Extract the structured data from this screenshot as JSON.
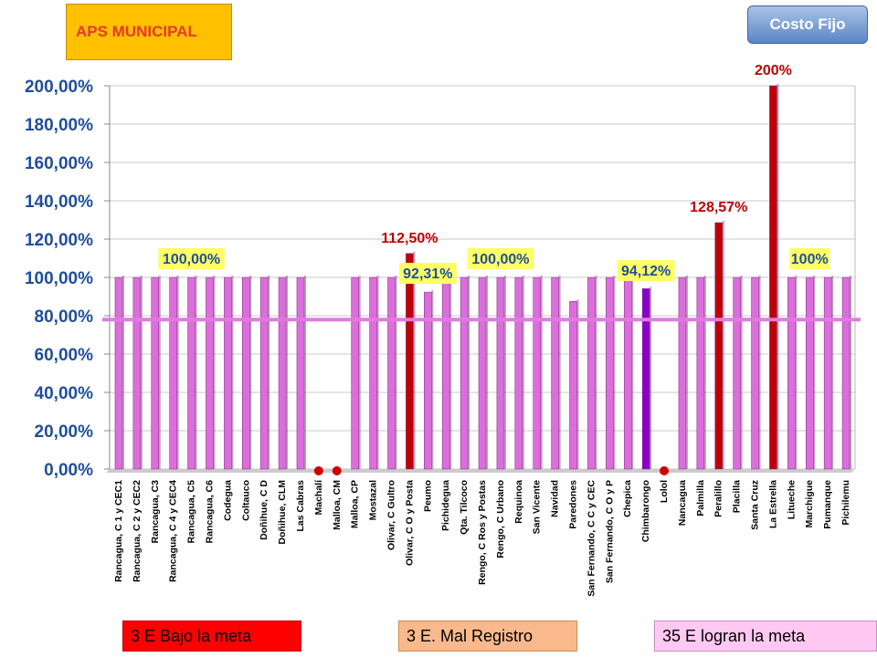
{
  "header": {
    "title": "APS MUNICIPAL",
    "button_label": "Costo Fijo"
  },
  "legend": {
    "below": "3 E Bajo la meta",
    "bad_record": "3 E. Mal Registro",
    "achieved": "35 E logran la meta"
  },
  "colors": {
    "bar_default": "#dc6edc",
    "bar_above": "#c00000",
    "bar_chimbarongo": "#8a00c8",
    "zero_marker": "#d00000",
    "target_line": "#e07ae0",
    "label_yellow": "#ffff66",
    "label_red_text": "#c00000",
    "label_blue_text": "#1f4e9c"
  },
  "chart_data": {
    "type": "bar",
    "ylim": [
      0,
      200
    ],
    "y_ticks": [
      "0,00%",
      "20,00%",
      "40,00%",
      "60,00%",
      "80,00%",
      "100,00%",
      "120,00%",
      "140,00%",
      "160,00%",
      "180,00%",
      "200,00%"
    ],
    "target": 78,
    "categories": [
      "Rancagua, C 1 y CEC1",
      "Rancagua, C 2 y CEC2",
      "Rancagua, C3",
      "Rancagua, C 4 y CEC4",
      "Rancagua, C5",
      "Rancagua, C6",
      "Codegua",
      "Coltauco",
      "Doñihue, C D",
      "Doñihue, CLM",
      "Las Cabras",
      "Machalí",
      "Malloa, CM",
      "Malloa, CP",
      "Mostazal",
      "Olivar, C Gultro",
      "Olivar, C O y Posta",
      "Peumo",
      "Pichidegua",
      "Qta. Tilcoco",
      "Rengo, C Ros y Postas",
      "Rengo, C Urbano",
      "Requinoa",
      "San Vicente",
      "Navidad",
      "Paredones",
      "San Fernando, C C y CEC",
      "San Fernando, C O y P",
      "Chepica",
      "Chimbarongo",
      "Lolol",
      "Nancagua",
      "Palmilla",
      "Peralillo",
      "Placilla",
      "Santa Cruz",
      "La Estrella",
      "Litueche",
      "Marchigue",
      "Pumanque",
      "Pichilemu"
    ],
    "values": [
      100,
      100,
      100,
      100,
      100,
      100,
      100,
      100,
      100,
      100,
      100,
      0,
      0,
      100,
      100,
      100,
      112.5,
      92.31,
      100,
      100,
      100,
      100,
      100,
      100,
      100,
      87.5,
      100,
      100,
      100,
      94.12,
      0,
      100,
      100,
      128.57,
      100,
      100,
      200,
      100,
      100,
      100,
      100
    ],
    "data_labels": [
      {
        "index": 4,
        "text": "100,00%",
        "style": "yellow"
      },
      {
        "index": 16,
        "text": "112,50%",
        "style": "red"
      },
      {
        "index": 17,
        "text": "92,31%",
        "style": "yellow"
      },
      {
        "index": 21,
        "text": "100,00%",
        "style": "yellow"
      },
      {
        "index": 29,
        "text": "94,12%",
        "style": "yellow"
      },
      {
        "index": 33,
        "text": "128,57%",
        "style": "red"
      },
      {
        "index": 36,
        "text": "200%",
        "style": "red"
      },
      {
        "index": 38,
        "text": "100%",
        "style": "yellow"
      }
    ]
  }
}
